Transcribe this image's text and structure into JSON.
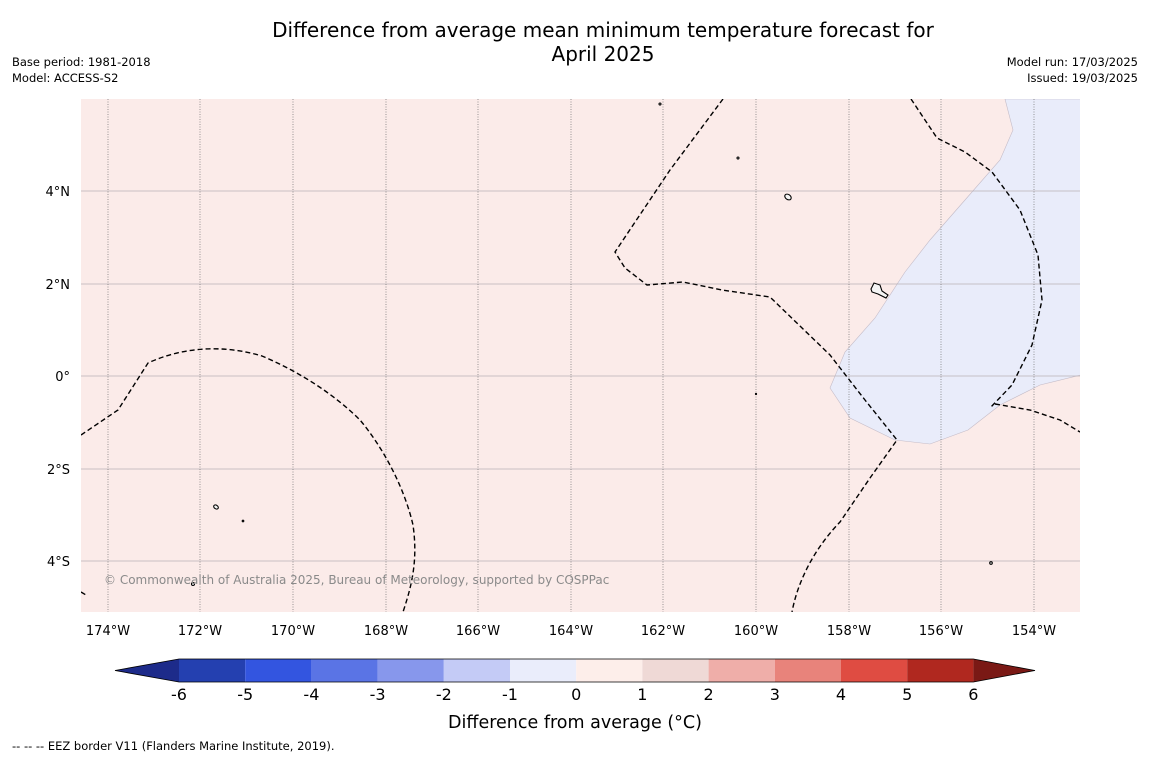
{
  "title": "Difference from average mean minimum temperature forecast for\nApril 2025",
  "meta_left": [
    "Base period: 1981-2018",
    "Model: ACCESS-S2"
  ],
  "meta_right": [
    "Model run: 17/03/2025",
    "Issued: 19/03/2025"
  ],
  "copyright": "© Commonwealth of Australia 2025, Bureau of Meteorology, supported by COSPPac",
  "footer": "--  --  -- EEZ border V11 (Flanders Marine Institute, 2019).",
  "map": {
    "latitude_labels": [
      "4°N",
      "2°N",
      "0°",
      "2°S",
      "4°S"
    ],
    "longitude_labels": [
      "174°W",
      "172°W",
      "170°W",
      "168°W",
      "166°W",
      "164°W",
      "162°W",
      "160°W",
      "158°W",
      "156°W",
      "154°W"
    ],
    "warm_fill": "#fbebe9",
    "cool_fill": "#e9ecfa"
  },
  "colorbar": {
    "title": "Difference from average (°C)",
    "ticks": [
      "-6",
      "-5",
      "-4",
      "-3",
      "-2",
      "-1",
      "0",
      "1",
      "2",
      "3",
      "4",
      "5",
      "6"
    ],
    "colors": [
      "#1d2b8a",
      "#2440b0",
      "#3355e0",
      "#5a74e5",
      "#8797ec",
      "#c4cbf6",
      "#eaedfb",
      "#fdeeea",
      "#efd9d6",
      "#efaea9",
      "#e8837b",
      "#df4c42",
      "#b0281f",
      "#7a1915"
    ]
  }
}
